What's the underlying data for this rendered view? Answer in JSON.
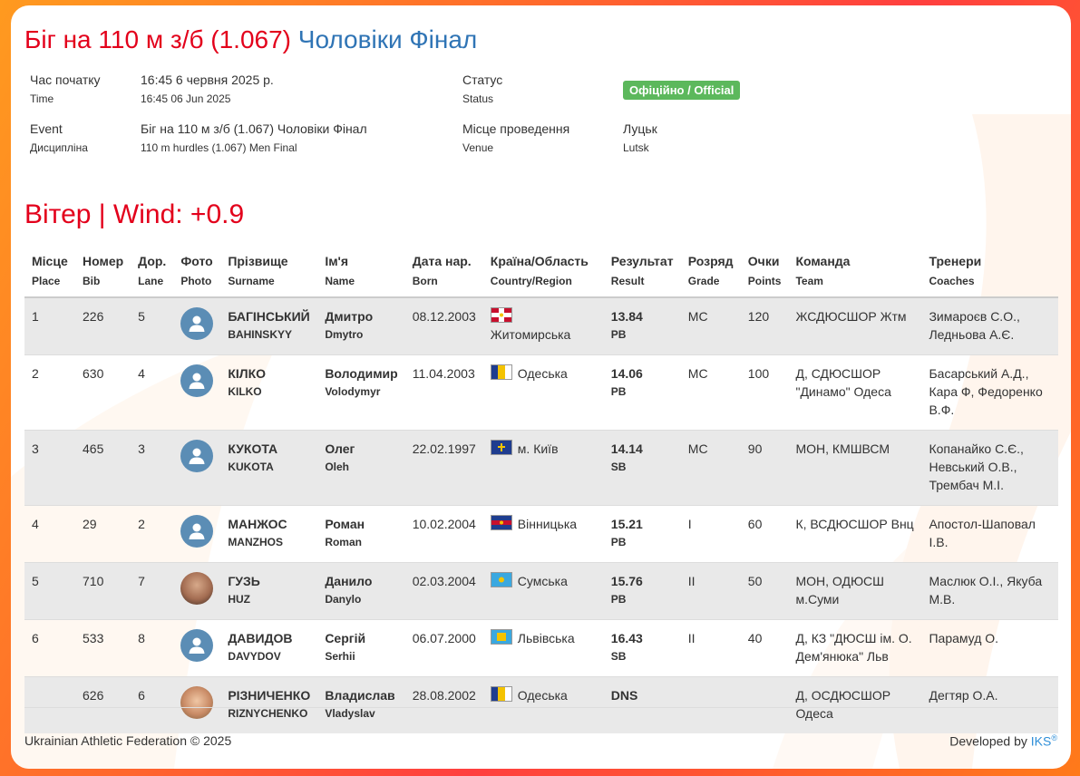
{
  "title": {
    "main": "Біг на 110 м з/б (1.067)",
    "sub": "Чоловіки Фінал"
  },
  "info": {
    "time_label_ua": "Час початку",
    "time_label_en": "Time",
    "time_value_ua": "16:45 6 червня 2025 р.",
    "time_value_en": "16:45 06 Jun 2025",
    "status_label_ua": "Статус",
    "status_label_en": "Status",
    "status_value": "Офіційно / Official",
    "event_label_1": "Event",
    "event_label_2": "Дисципліна",
    "event_value_ua": "Біг на 110 м з/б (1.067) Чоловіки Фінал",
    "event_value_en": "110 m hurdles (1.067) Men Final",
    "venue_label_ua": "Місце проведення",
    "venue_label_en": "Venue",
    "venue_value_ua": "Луцьк",
    "venue_value_en": "Lutsk"
  },
  "wind": "Вітер | Wind: +0.9",
  "columns": [
    {
      "ua": "Місце",
      "en": "Place"
    },
    {
      "ua": "Номер",
      "en": "Bib"
    },
    {
      "ua": "Дор.",
      "en": "Lane"
    },
    {
      "ua": "Фото",
      "en": "Photo"
    },
    {
      "ua": "Прізвище",
      "en": "Surname"
    },
    {
      "ua": "Ім'я",
      "en": "Name"
    },
    {
      "ua": "Дата нар.",
      "en": "Born"
    },
    {
      "ua": "Країна/Область",
      "en": "Country/Region"
    },
    {
      "ua": "Результат",
      "en": "Result"
    },
    {
      "ua": "Розряд",
      "en": "Grade"
    },
    {
      "ua": "Очки",
      "en": "Points"
    },
    {
      "ua": "Команда",
      "en": "Team"
    },
    {
      "ua": "Тренери",
      "en": "Coaches"
    }
  ],
  "rows": [
    {
      "place": "1",
      "bib": "226",
      "lane": "5",
      "photo": "avatar-placeholder",
      "surname_ua": "БАГІНСЬКИЙ",
      "surname_en": "BAHINSKYY",
      "name_ua": "Дмитро",
      "name_en": "Dmytro",
      "born": "08.12.2003",
      "region": "Житомирська",
      "flag": "zhytomyr",
      "result": "13.84",
      "note": "PB",
      "grade": "МС",
      "points": "120",
      "team": "ЖСДЮСШОР Жтм",
      "coaches": "Зимароєв С.О., Ледньова А.Є."
    },
    {
      "place": "2",
      "bib": "630",
      "lane": "4",
      "photo": "avatar-placeholder",
      "surname_ua": "КІЛКО",
      "surname_en": "KILKO",
      "name_ua": "Володимир",
      "name_en": "Volodymyr",
      "born": "11.04.2003",
      "region": "Одеська",
      "flag": "odesa",
      "result": "14.06",
      "note": "PB",
      "grade": "МС",
      "points": "100",
      "team": "Д, СДЮСШОР \"Динамо\" Одеса",
      "coaches": "Басарський А.Д., Кара Ф, Федоренко В.Ф."
    },
    {
      "place": "3",
      "bib": "465",
      "lane": "3",
      "photo": "avatar-placeholder",
      "surname_ua": "КУКОТА",
      "surname_en": "KUKOTA",
      "name_ua": "Олег",
      "name_en": "Oleh",
      "born": "22.02.1997",
      "region": "м. Київ",
      "flag": "kyiv",
      "result": "14.14",
      "note": "SB",
      "grade": "МС",
      "points": "90",
      "team": "МОН, КМШВСМ",
      "coaches": "Копанайко С.Є., Невський О.В., Трембач М.І."
    },
    {
      "place": "4",
      "bib": "29",
      "lane": "2",
      "photo": "avatar-placeholder",
      "surname_ua": "МАНЖОС",
      "surname_en": "MANZHOS",
      "name_ua": "Роман",
      "name_en": "Roman",
      "born": "10.02.2004",
      "region": "Вінницька",
      "flag": "vinnytsia",
      "result": "15.21",
      "note": "PB",
      "grade": "I",
      "points": "60",
      "team": "К, ВСДЮСШОР Внц",
      "coaches": "Апостол-Шаповал І.В."
    },
    {
      "place": "5",
      "bib": "710",
      "lane": "7",
      "photo": "portrait",
      "surname_ua": "ГУЗЬ",
      "surname_en": "HUZ",
      "name_ua": "Данило",
      "name_en": "Danylo",
      "born": "02.03.2004",
      "region": "Сумська",
      "flag": "sumy",
      "result": "15.76",
      "note": "PB",
      "grade": "II",
      "points": "50",
      "team": "МОН, ОДЮСШ м.Суми",
      "coaches": "Маслюк О.І., Якуба М.В."
    },
    {
      "place": "6",
      "bib": "533",
      "lane": "8",
      "photo": "avatar-placeholder",
      "surname_ua": "ДАВИДОВ",
      "surname_en": "DAVYDOV",
      "name_ua": "Сергій",
      "name_en": "Serhii",
      "born": "06.07.2000",
      "region": "Львівська",
      "flag": "lviv",
      "result": "16.43",
      "note": "SB",
      "grade": "II",
      "points": "40",
      "team": "Д, КЗ \"ДЮСШ ім. О. Дем'янюка\" Льв",
      "coaches": "Парамуд О."
    },
    {
      "place": "",
      "bib": "626",
      "lane": "6",
      "photo": "portrait2",
      "surname_ua": "РІЗНИЧЕНКО",
      "surname_en": "RIZNYCHENKO",
      "name_ua": "Владислав",
      "name_en": "Vladyslav",
      "born": "28.08.2002",
      "region": "Одеська",
      "flag": "odesa",
      "result": "DNS",
      "note": "",
      "grade": "",
      "points": "",
      "team": "Д, ОСДЮСШОР Одеса",
      "coaches": "Дегтяр О.А."
    }
  ],
  "footer": {
    "left": "Ukrainian Athletic Federation © 2025",
    "right_prefix": "Developed by ",
    "right_brand": "IKS",
    "right_reg": "®"
  },
  "colors": {
    "accent_red": "#e3001b",
    "accent_blue": "#2f74b5",
    "status_green": "#5cb85c"
  }
}
